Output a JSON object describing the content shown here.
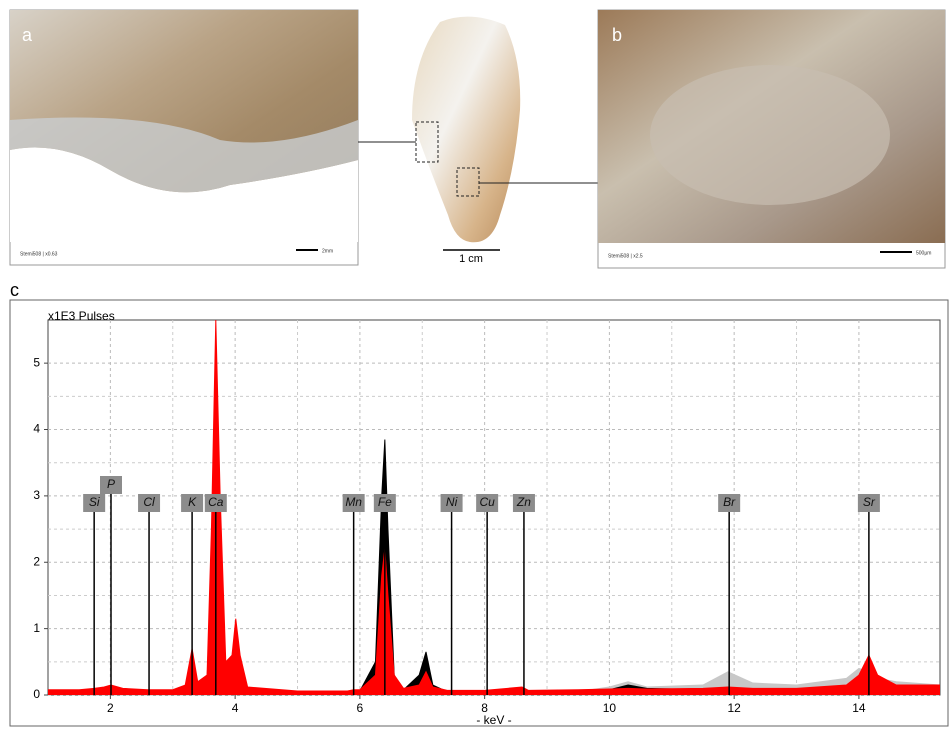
{
  "figure": {
    "panel_a": {
      "label": "a",
      "caption": "Stemi508 | x0.63",
      "scale": "2mm"
    },
    "panel_b": {
      "label": "b",
      "caption": "Stemi508 | x2.5",
      "scale": "500µm"
    },
    "center_scale": "1 cm",
    "panel_c": {
      "label": "c"
    }
  },
  "chart_data": {
    "type": "area",
    "ylabel": "x1E3 Pulses",
    "xlabel": "- keV -",
    "xlim": [
      1.0,
      15.3
    ],
    "ylim": [
      0,
      5.65
    ],
    "xticks": [
      2,
      4,
      6,
      8,
      10,
      12,
      14
    ],
    "yticks": [
      0,
      1,
      2,
      3,
      4,
      5
    ],
    "grid": true,
    "x": [
      1.0,
      1.5,
      1.74,
      1.9,
      2.01,
      2.2,
      2.6,
      3.0,
      3.2,
      3.31,
      3.4,
      3.55,
      3.62,
      3.69,
      3.76,
      3.85,
      3.95,
      4.01,
      4.08,
      4.2,
      5.0,
      5.8,
      5.9,
      6.0,
      6.25,
      6.35,
      6.4,
      6.45,
      6.55,
      6.7,
      6.95,
      7.06,
      7.17,
      7.4,
      8.0,
      8.6,
      8.7,
      9.5,
      10.0,
      10.3,
      10.6,
      11.5,
      11.9,
      12.3,
      13.0,
      13.8,
      14.0,
      14.16,
      14.3,
      14.6,
      15.3
    ],
    "series": [
      {
        "color": "#c8c8c8",
        "values": [
          0.02,
          0.02,
          0.02,
          0.02,
          0.02,
          0.02,
          0.02,
          0.02,
          0.02,
          0.02,
          0.02,
          0.02,
          0.02,
          0.02,
          0.02,
          0.02,
          0.02,
          0.02,
          0.02,
          0.02,
          0.02,
          0.02,
          0.02,
          0.02,
          0.02,
          0.02,
          0.02,
          0.02,
          0.02,
          0.02,
          0.02,
          0.02,
          0.02,
          0.02,
          0.02,
          0.02,
          0.02,
          0.05,
          0.12,
          0.2,
          0.12,
          0.15,
          0.35,
          0.18,
          0.15,
          0.25,
          0.4,
          0.35,
          0.25,
          0.2,
          0.15
        ]
      },
      {
        "color": "#000000",
        "values": [
          0.05,
          0.05,
          0.07,
          0.08,
          0.1,
          0.07,
          0.05,
          0.05,
          0.1,
          0.5,
          0.15,
          0.2,
          2.0,
          4.2,
          2.2,
          0.3,
          0.4,
          0.5,
          0.3,
          0.08,
          0.04,
          0.04,
          0.06,
          0.06,
          0.5,
          3.0,
          3.85,
          2.5,
          0.3,
          0.08,
          0.3,
          0.65,
          0.15,
          0.05,
          0.05,
          0.06,
          0.05,
          0.06,
          0.08,
          0.15,
          0.1,
          0.08,
          0.1,
          0.08,
          0.07,
          0.08,
          0.15,
          0.3,
          0.15,
          0.1,
          0.1
        ]
      },
      {
        "color": "#ff0000",
        "values": [
          0.08,
          0.08,
          0.1,
          0.12,
          0.15,
          0.1,
          0.08,
          0.08,
          0.15,
          0.7,
          0.2,
          0.3,
          2.5,
          5.65,
          3.0,
          0.5,
          0.6,
          1.15,
          0.6,
          0.12,
          0.06,
          0.06,
          0.08,
          0.08,
          0.3,
          1.8,
          2.2,
          1.5,
          0.3,
          0.1,
          0.15,
          0.35,
          0.12,
          0.07,
          0.07,
          0.12,
          0.07,
          0.08,
          0.09,
          0.1,
          0.09,
          0.1,
          0.12,
          0.1,
          0.1,
          0.15,
          0.3,
          0.6,
          0.3,
          0.15,
          0.15
        ]
      }
    ],
    "elements": [
      {
        "name": "Si",
        "energy": 1.74
      },
      {
        "name": "P",
        "energy": 2.01
      },
      {
        "name": "Cl",
        "energy": 2.62
      },
      {
        "name": "K",
        "energy": 3.31
      },
      {
        "name": "Ca",
        "energy": 3.69
      },
      {
        "name": "Mn",
        "energy": 5.9
      },
      {
        "name": "Fe",
        "energy": 6.4
      },
      {
        "name": "Ni",
        "energy": 7.47
      },
      {
        "name": "Cu",
        "energy": 8.04
      },
      {
        "name": "Zn",
        "energy": 8.63
      },
      {
        "name": "Br",
        "energy": 11.92
      },
      {
        "name": "Sr",
        "energy": 14.16
      }
    ]
  }
}
